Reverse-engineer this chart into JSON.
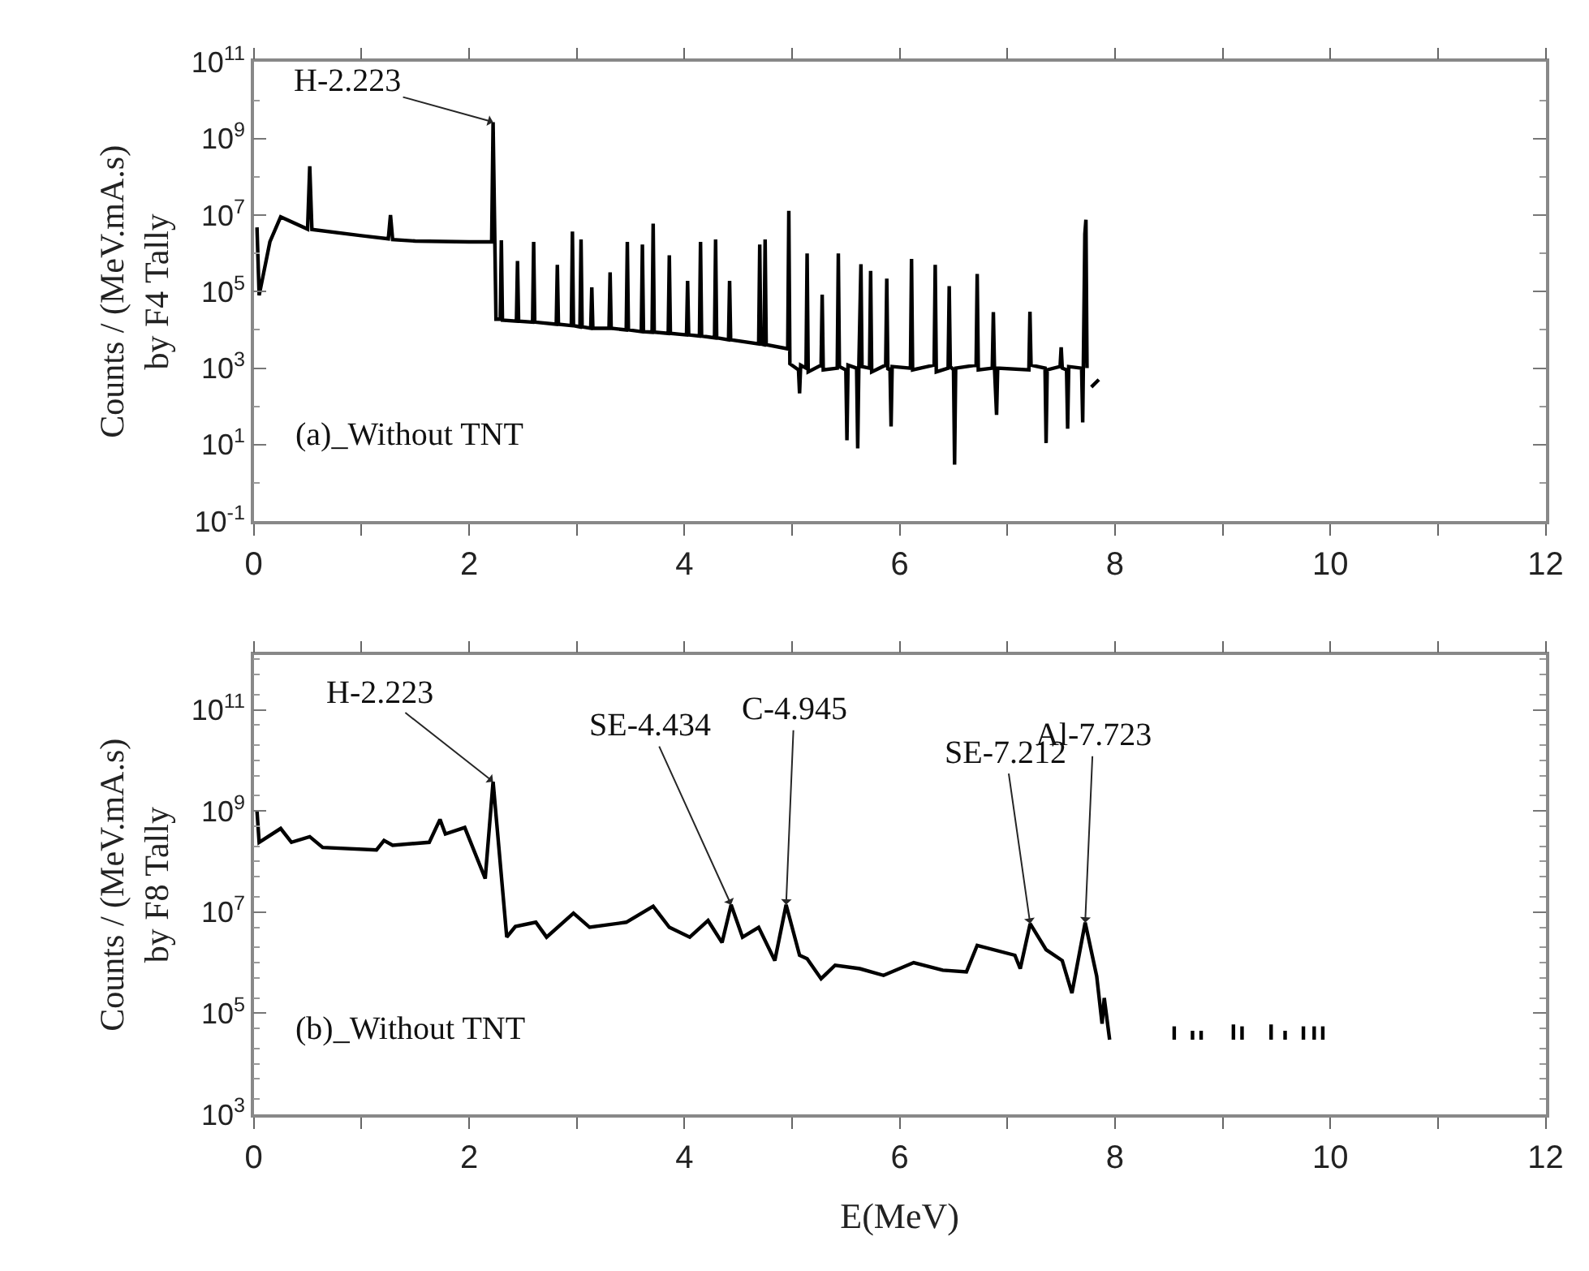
{
  "chart_data": [
    {
      "type": "line",
      "ylabel": "Counts / (MeV.mA.s)\nby F4 Tally",
      "log": "y",
      "line_style": "solid",
      "marker": "none",
      "xlim": [
        0,
        12
      ],
      "xticks": [
        0,
        {
          "value": 1,
          "label": null
        },
        2,
        {
          "value": 3,
          "label": null
        },
        4,
        {
          "value": 5,
          "label": null
        },
        6,
        {
          "value": 7,
          "label": null
        },
        8,
        {
          "value": 9,
          "label": null
        },
        10,
        {
          "value": 11,
          "label": null
        },
        12
      ],
      "ylim": [
        0.1,
        100000000000.0
      ],
      "yticks": [
        {
          "value": 0.1,
          "label": "10$^{-1}$"
        },
        {
          "value": 10,
          "label": "10$^{1}$"
        },
        {
          "value": 1000,
          "label": "10$^{3}$"
        },
        {
          "value": 100000,
          "label": "10$^{5}$"
        },
        {
          "value": 10000000,
          "label": "10$^{7}$"
        },
        {
          "value": 1000000000,
          "label": "10$^{9}$"
        },
        {
          "value": 100000000000,
          "label": "10$^{11}$"
        }
      ],
      "annotations": [
        {
          "text": "H-2.223",
          "x": 2.223,
          "y": 2700000000
        },
        "(a)_Without TNT"
      ],
      "series": [
        {
          "color": "#000000",
          "x": [
            0.03,
            0.05,
            0.15,
            0.25,
            0.5,
            0.52,
            0.54,
            1.0,
            1.25,
            1.27,
            1.29,
            1.5,
            2.0,
            2.21,
            2.223,
            2.24,
            2.25,
            2.29,
            2.3,
            2.31,
            2.44,
            2.45,
            2.46,
            2.59,
            2.6,
            2.61,
            2.81,
            2.82,
            2.83,
            2.95,
            2.96,
            2.97,
            3.03,
            3.04,
            3.05,
            3.13,
            3.14,
            3.15,
            3.3,
            3.31,
            3.32,
            3.46,
            3.47,
            3.48,
            3.6,
            3.61,
            3.62,
            3.7,
            3.71,
            3.72,
            3.85,
            3.86,
            3.87,
            4.02,
            4.03,
            4.04,
            4.14,
            4.15,
            4.16,
            4.28,
            4.29,
            4.3,
            4.41,
            4.42,
            4.43,
            4.69,
            4.7,
            4.71,
            4.74,
            4.75,
            4.76,
            4.96,
            4.97,
            4.98,
            5.06,
            5.07,
            5.08,
            5.13,
            5.14,
            5.15,
            5.27,
            5.28,
            5.29,
            5.42,
            5.43,
            5.44,
            5.5,
            5.51,
            5.52,
            5.6,
            5.61,
            5.62,
            5.64,
            5.65,
            5.72,
            5.73,
            5.74,
            5.87,
            5.88,
            5.89,
            5.91,
            5.92,
            5.93,
            6.1,
            6.11,
            6.12,
            6.32,
            6.33,
            6.34,
            6.45,
            6.46,
            6.47,
            6.5,
            6.51,
            6.52,
            6.71,
            6.72,
            6.73,
            6.86,
            6.87,
            6.88,
            6.9,
            6.91,
            7.2,
            7.21,
            7.22,
            7.35,
            7.36,
            7.37,
            7.49,
            7.5,
            7.51,
            7.55,
            7.56,
            7.57,
            7.69,
            7.7,
            7.72,
            7.73,
            7.74,
            7.76,
            7.78,
            7.85
          ],
          "values": [
            4800000,
            80000,
            2000000,
            9000000,
            4300000,
            190000000,
            4200000,
            2900000,
            2400000,
            10000000,
            2300000,
            2100000,
            2000000,
            2000000,
            2700000000,
            1600000,
            19000,
            19000,
            2200000,
            18000,
            17000,
            630000,
            17000,
            16000,
            2000000,
            16000,
            14000,
            500000,
            14000,
            13000,
            3700000,
            13000,
            12000,
            2300000,
            12000,
            11000,
            130000,
            11000,
            11000,
            320000,
            11000,
            10000,
            2000000,
            10000,
            9000,
            1700000,
            9000,
            8700,
            6000000,
            8700,
            8100,
            890000,
            8100,
            7400,
            190000,
            7400,
            6900,
            2000000,
            6900,
            6200,
            2300000,
            6200,
            5500,
            190000,
            5500,
            4300,
            1700000,
            4300,
            4100,
            2300000,
            4100,
            3200,
            13000000,
            1300,
            900,
            220,
            1200,
            1000,
            1000000,
            800,
            1200,
            83000,
            900,
            1000,
            1000000,
            1100,
            900,
            13,
            1200,
            1000,
            8,
            900,
            520000,
            1100,
            1000,
            350000,
            800,
            1200,
            220000,
            900,
            1000,
            30,
            1100,
            1000,
            720000,
            900,
            1200,
            500000,
            800,
            1000,
            140000,
            1100,
            900,
            3,
            1000,
            1200,
            290000,
            900,
            1000,
            29000,
            1100,
            60,
            1000,
            900,
            30000,
            1200,
            1000,
            11,
            900,
            1100,
            3500,
            1000,
            900,
            26,
            1100,
            1000,
            38,
            3200000,
            7600000,
            1000,
            null,
            320,
            500
          ]
        }
      ]
    },
    {
      "type": "line",
      "ylabel": "Counts / (MeV.mA.s)\nby F8 Tally",
      "xlabel": "E(MeV)",
      "log": "y",
      "line_style": "solid",
      "marker": "none",
      "xlim": [
        0,
        12
      ],
      "xticks": [
        0,
        {
          "value": 1,
          "label": null
        },
        2,
        {
          "value": 3,
          "label": null
        },
        4,
        {
          "value": 5,
          "label": null
        },
        6,
        {
          "value": 7,
          "label": null
        },
        8,
        {
          "value": 9,
          "label": null
        },
        10,
        {
          "value": 11,
          "label": null
        },
        12
      ],
      "ylim": [
        1000,
        1200000000000.0
      ],
      "yticks": [
        {
          "value": 1000,
          "label": "10$^{3}$"
        },
        {
          "value": 100000,
          "label": "10$^{5}$"
        },
        {
          "value": 10000000,
          "label": "10$^{7}$"
        },
        {
          "value": 1000000000,
          "label": "10$^{9}$"
        },
        {
          "value": 100000000000,
          "label": "10$^{11}$"
        }
      ],
      "annotations": [
        {
          "text": "H-2.223",
          "x": 2.223,
          "y": 3800000000
        },
        {
          "text": "SE-4.434",
          "x": 4.434,
          "y": 14000000
        },
        {
          "text": "C-4.945",
          "x": 4.945,
          "y": 14000000
        },
        {
          "text": "SE-7.212",
          "x": 7.212,
          "y": 5900000
        },
        {
          "text": "Al-7.723",
          "x": 7.723,
          "y": 6200000
        },
        "(b)_Without TNT"
      ],
      "series": [
        {
          "color": "#000000",
          "x": [
            0.03,
            0.05,
            0.25,
            0.35,
            0.52,
            0.64,
            1.14,
            1.21,
            1.29,
            1.63,
            1.73,
            1.78,
            1.96,
            2.15,
            2.223,
            2.35,
            2.43,
            2.62,
            2.72,
            2.97,
            3.12,
            3.46,
            3.71,
            3.86,
            4.05,
            4.22,
            4.35,
            4.434,
            4.54,
            4.69,
            4.84,
            4.945,
            5.07,
            5.14,
            5.27,
            5.4,
            5.63,
            5.85,
            6.13,
            6.4,
            6.62,
            6.72,
            7.07,
            7.12,
            7.212,
            7.36,
            7.51,
            7.6,
            7.723,
            7.83,
            7.88,
            7.9,
            7.95,
            8.2,
            8.55,
            8.55,
            8.6,
            8.72,
            8.72,
            8.75,
            8.8,
            8.8,
            9.0,
            9.1,
            9.1,
            9.13,
            9.18,
            9.18,
            9.3,
            9.45,
            9.45,
            9.5,
            9.58,
            9.58,
            9.65,
            9.75,
            9.75,
            9.77,
            9.85,
            9.85,
            9.88,
            9.93,
            9.93
          ],
          "values": [
            1000000000,
            240000000,
            450000000,
            240000000,
            310000000,
            190000000,
            170000000,
            260000000,
            210000000,
            240000000,
            680000000,
            350000000,
            470000000,
            46000000,
            3800000000,
            3200000,
            5200000,
            6300000,
            3200000,
            9500000,
            5000000,
            6300000,
            13000000,
            5000000,
            3200000,
            6800000,
            2500000,
            14000000,
            3200000,
            5000000,
            1100000,
            14000000,
            1400000,
            1200000,
            480000,
            890000,
            760000,
            560000,
            1000000,
            710000,
            660000,
            2200000,
            1400000,
            760000,
            5900000,
            1800000,
            1100000,
            250000,
            6200000,
            540000,
            62000,
            200000,
            30000,
            null,
            30000,
            55000,
            null,
            30000,
            45000,
            null,
            30000,
            45000,
            null,
            30000,
            60000,
            null,
            30000,
            55000,
            null,
            30000,
            60000,
            null,
            30000,
            45000,
            null,
            30000,
            55000,
            null,
            30000,
            55000,
            null,
            30000,
            55000
          ]
        }
      ]
    }
  ]
}
